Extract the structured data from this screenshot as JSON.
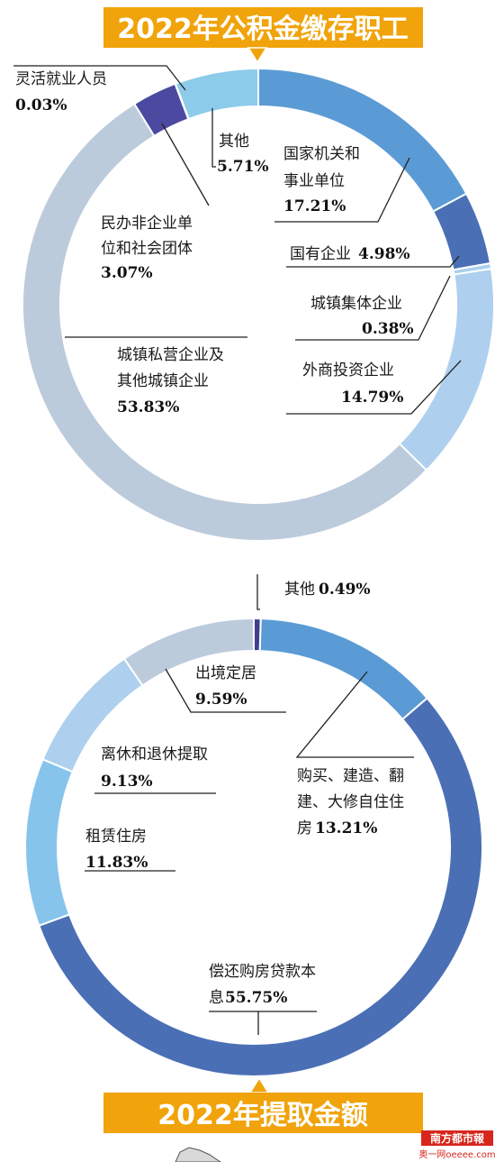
{
  "chart_data": [
    {
      "type": "pie",
      "title": "2022年公积金缴存职工",
      "categories": [
        "国家机关和事业单位",
        "国有企业",
        "城镇集体企业",
        "外商投资企业",
        "城镇私营企业及其他城镇企业",
        "民办非企业单位和社会团体",
        "灵活就业人员",
        "其他"
      ],
      "values": [
        17.21,
        4.98,
        0.38,
        14.79,
        53.83,
        3.07,
        0.03,
        5.71
      ],
      "value_labels": [
        "17.21%",
        "4.98%",
        "0.38%",
        "14.79%",
        "53.83%",
        "3.07%",
        "0.03%",
        "5.71%"
      ],
      "colors": [
        "#5b9bd5",
        "#4a6fb5",
        "#a9d1ee",
        "#aed0ee",
        "#bccbdc",
        "#4b4aa0",
        "#2c2f6a",
        "#8ccbea"
      ]
    },
    {
      "type": "pie",
      "title": "2022年提取金额",
      "categories": [
        "其他",
        "购买、建造、翻建、大修自住住房",
        "偿还购房贷款本息",
        "租赁住房",
        "离休和退休提取",
        "出境定居"
      ],
      "values": [
        0.49,
        13.21,
        55.75,
        11.83,
        9.13,
        9.59
      ],
      "value_labels": [
        "0.49%",
        "13.21%",
        "55.75%",
        "11.83%",
        "9.13%",
        "9.59%"
      ],
      "colors": [
        "#3f3f8f",
        "#5b9bd5",
        "#4a6fb5",
        "#86c4ec",
        "#aed0ee",
        "#bccbdc"
      ]
    }
  ],
  "labels": {
    "c1_flexible": "灵活就业人员",
    "c1_other": "其他",
    "c1_gov_1": "国家机关和",
    "c1_gov_2": "事业单位",
    "c1_soe": "国有企业",
    "c1_collective": "城镇集体企业",
    "c1_foreign": "外商投资企业",
    "c1_nonprofit_1": "民办非企业单",
    "c1_nonprofit_2": "位和社会团体",
    "c1_private_1": "城镇私营企业及",
    "c1_private_2": "其他城镇企业",
    "c2_other": "其他",
    "c2_emigrate": "出境定居",
    "c2_buy_1": "购买、建造、翻",
    "c2_buy_2": "建、大修自住住",
    "c2_buy_3": "房",
    "c2_retire": "离休和退休提取",
    "c2_rent": "租赁住房",
    "c2_loan_1": "偿还购房贷款本",
    "c2_loan_2": "息"
  },
  "logo": {
    "name": "南方都市報",
    "sub": "奥一网oeeee.com"
  },
  "colors": {
    "banner": "#f0a30a",
    "accent": "#d8261c"
  }
}
